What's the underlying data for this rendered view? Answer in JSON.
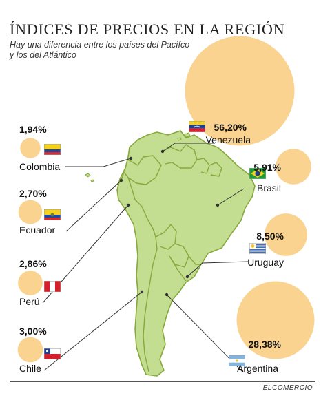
{
  "title": "ÍNDICES DE PRECIOS EN LA REGIÓN",
  "subtitle": "Hay una diferencia entre los países del Pacífco y los del Atlántico",
  "credit": "ELCOMERCIO",
  "colors": {
    "bubble": "#fad391",
    "land": "#c3dd91",
    "border": "#86a83c",
    "leader": "#333333"
  },
  "chart_data": {
    "type": "bubble-map",
    "title": "ÍNDICES DE PRECIOS EN LA REGIÓN",
    "subtitle": "Hay una diferencia entre los países del Pacífco y los del Atlántico",
    "unit": "%",
    "series": [
      {
        "country": "Colombia",
        "value": 1.94,
        "label": "1,94%",
        "flag": "colombia-flag"
      },
      {
        "country": "Ecuador",
        "value": 2.7,
        "label": "2,70%",
        "flag": "ecuador-flag"
      },
      {
        "country": "Perú",
        "value": 2.86,
        "label": "2,86%",
        "flag": "peru-flag"
      },
      {
        "country": "Chile",
        "value": 3.0,
        "label": "3,00%",
        "flag": "chile-flag"
      },
      {
        "country": "Venezuela",
        "value": 56.2,
        "label": "56,20%",
        "flag": "venezuela-flag"
      },
      {
        "country": "Brasil",
        "value": 5.91,
        "label": "5,91%",
        "flag": "brazil-flag"
      },
      {
        "country": "Uruguay",
        "value": 8.5,
        "label": "8,50%",
        "flag": "uruguay-flag"
      },
      {
        "country": "Argentina",
        "value": 28.38,
        "label": "28,38%",
        "flag": "argentina-flag"
      }
    ]
  }
}
